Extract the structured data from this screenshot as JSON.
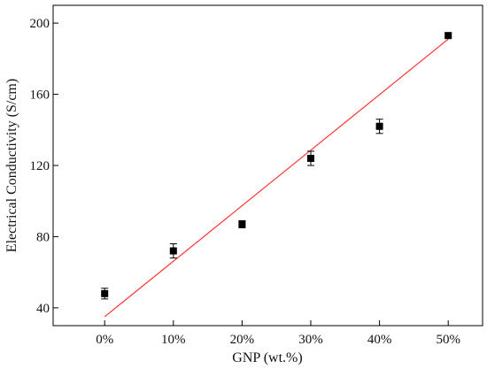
{
  "chart_data": {
    "type": "scatter",
    "xlabel": "GNP (wt.%)",
    "ylabel": "Electrical Conductivity (S/cm)",
    "categories": [
      "0%",
      "10%",
      "20%",
      "30%",
      "40%",
      "50%"
    ],
    "x": [
      0,
      10,
      20,
      30,
      40,
      50
    ],
    "y": [
      48,
      72,
      87,
      124,
      142,
      193
    ],
    "y_error": [
      3,
      4,
      2,
      4,
      4,
      1
    ],
    "xlim": [
      -7.5,
      55
    ],
    "ylim": [
      30,
      210
    ],
    "yticks": [
      40,
      80,
      120,
      160,
      200
    ],
    "grid": false,
    "fit_line": {
      "x": [
        0,
        50
      ],
      "y": [
        35,
        191
      ],
      "color": "#ff3333"
    },
    "marker_color": "#000000"
  }
}
